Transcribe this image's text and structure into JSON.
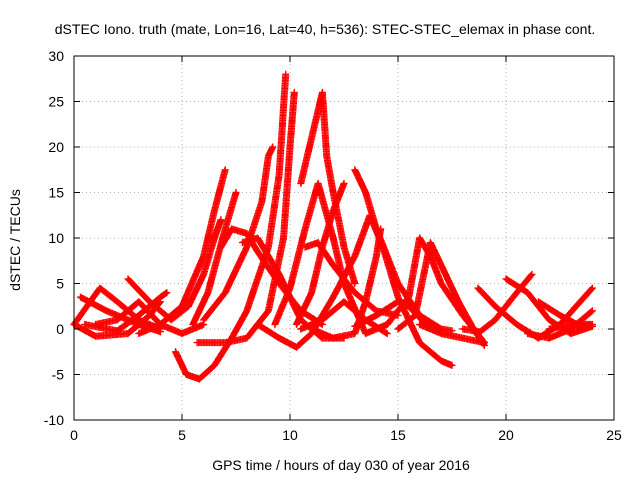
{
  "chart_data": {
    "type": "scatter",
    "title": "dSTEC Iono. truth (mate, Lon=16, Lat=40, h=536): STEC-STEC_elemax in phase cont.",
    "xlabel": "GPS time / hours of day 030 of year 2016",
    "ylabel": "dSTEC  / TECUs",
    "xlim": [
      0,
      25
    ],
    "ylim": [
      -10,
      30
    ],
    "x_ticks": [
      0,
      5,
      10,
      15,
      20,
      25
    ],
    "y_ticks": [
      -10,
      -5,
      0,
      5,
      10,
      15,
      20,
      25,
      30
    ],
    "grid": true,
    "marker": "+",
    "color": "#ff0000",
    "series": [
      {
        "points": [
          [
            0,
            0.5
          ],
          [
            0.6,
            2.5
          ],
          [
            1.2,
            4.5
          ],
          [
            2.0,
            3.0
          ],
          [
            3.0,
            1.0
          ],
          [
            4.0,
            0.0
          ]
        ]
      },
      {
        "points": [
          [
            0,
            0.5
          ],
          [
            1.0,
            -0.8
          ],
          [
            2.5,
            -0.5
          ],
          [
            3.5,
            1.5
          ],
          [
            4.0,
            3.0
          ]
        ]
      },
      {
        "points": [
          [
            0.3,
            3.5
          ],
          [
            1.5,
            2.0
          ],
          [
            3.0,
            0.5
          ],
          [
            4.0,
            -0.3
          ]
        ]
      },
      {
        "points": [
          [
            0.5,
            0.5
          ],
          [
            2.0,
            -0.2
          ],
          [
            3.0,
            1.5
          ],
          [
            4.0,
            3.5
          ],
          [
            4.3,
            4.0
          ]
        ]
      },
      {
        "points": [
          [
            1.0,
            0.5
          ],
          [
            2.0,
            1.0
          ],
          [
            3.0,
            3.0
          ],
          [
            4.0,
            0.5
          ],
          [
            5.0,
            -0.5
          ],
          [
            6.0,
            0.5
          ]
        ]
      },
      {
        "points": [
          [
            2.5,
            5.5
          ],
          [
            3.5,
            3.0
          ],
          [
            4.5,
            1.0
          ],
          [
            5.3,
            2.5
          ],
          [
            6.0,
            6.0
          ],
          [
            6.5,
            10.0
          ],
          [
            6.8,
            12.0
          ]
        ]
      },
      {
        "points": [
          [
            3.0,
            -0.5
          ],
          [
            4.0,
            0.5
          ],
          [
            5.0,
            2.5
          ],
          [
            6.0,
            8.0
          ],
          [
            6.5,
            13.0
          ],
          [
            7.0,
            17.5
          ]
        ]
      },
      {
        "points": [
          [
            4.7,
            -2.5
          ],
          [
            5.2,
            -5.0
          ],
          [
            5.8,
            -5.5
          ],
          [
            6.5,
            -4.0
          ],
          [
            7.3,
            -1.0
          ],
          [
            8.0,
            2.0
          ],
          [
            9.0,
            9.0
          ],
          [
            9.5,
            17.0
          ],
          [
            9.8,
            28.0
          ]
        ]
      },
      {
        "points": [
          [
            5.5,
            0.5
          ],
          [
            6.2,
            4.0
          ],
          [
            7.0,
            11.0
          ],
          [
            7.5,
            15.0
          ]
        ]
      },
      {
        "points": [
          [
            5.7,
            -1.5
          ],
          [
            7.0,
            -1.5
          ],
          [
            8.0,
            -1.0
          ],
          [
            9.0,
            2.0
          ],
          [
            9.7,
            10.0
          ],
          [
            10.0,
            20.0
          ],
          [
            10.2,
            26.0
          ]
        ]
      },
      {
        "points": [
          [
            6.0,
            1.0
          ],
          [
            7.0,
            4.0
          ],
          [
            8.0,
            9.0
          ],
          [
            8.7,
            14.0
          ],
          [
            9.0,
            19.0
          ],
          [
            9.2,
            20.0
          ]
        ]
      },
      {
        "points": [
          [
            6.8,
            9.0
          ],
          [
            7.3,
            11.0
          ],
          [
            8.0,
            10.5
          ],
          [
            8.5,
            8.5
          ],
          [
            9.5,
            5.0
          ],
          [
            10.5,
            2.0
          ],
          [
            11.5,
            0.5
          ]
        ]
      },
      {
        "points": [
          [
            7.8,
            9.5
          ],
          [
            8.5,
            10.0
          ],
          [
            9.5,
            6.0
          ],
          [
            10.5,
            1.0
          ],
          [
            11.5,
            -1.0
          ],
          [
            12.5,
            -1.0
          ]
        ]
      },
      {
        "points": [
          [
            8.5,
            0.5
          ],
          [
            9.5,
            -1.0
          ],
          [
            10.3,
            -2.0
          ],
          [
            11.0,
            -0.5
          ],
          [
            12.0,
            3.5
          ],
          [
            13.0,
            8.0
          ],
          [
            13.7,
            12.5
          ],
          [
            14.3,
            9.0
          ],
          [
            15.0,
            3.5
          ],
          [
            16.0,
            -1.5
          ],
          [
            17.0,
            -3.5
          ],
          [
            17.5,
            -4.0
          ]
        ]
      },
      {
        "points": [
          [
            9.3,
            0.5
          ],
          [
            10.0,
            4.5
          ],
          [
            10.7,
            11.0
          ],
          [
            11.3,
            16.0
          ],
          [
            12.0,
            10.0
          ],
          [
            12.5,
            5.0
          ],
          [
            13.5,
            -0.5
          ],
          [
            14.5,
            0.5
          ]
        ]
      },
      {
        "points": [
          [
            10.5,
            16.0
          ],
          [
            11.0,
            21.0
          ],
          [
            11.5,
            26.0
          ],
          [
            11.7,
            19.0
          ],
          [
            12.0,
            15.0
          ],
          [
            12.5,
            9.0
          ],
          [
            13.0,
            5.0
          ]
        ]
      },
      {
        "points": [
          [
            10.3,
            0.5
          ],
          [
            11.0,
            4.0
          ],
          [
            11.5,
            9.0
          ],
          [
            12.0,
            13.0
          ],
          [
            12.5,
            16.0
          ]
        ]
      },
      {
        "points": [
          [
            10.5,
            0.0
          ],
          [
            11.5,
            1.0
          ],
          [
            12.5,
            3.0
          ],
          [
            13.5,
            1.0
          ],
          [
            14.5,
            -0.5
          ]
        ]
      },
      {
        "points": [
          [
            10.7,
            9.0
          ],
          [
            11.3,
            9.5
          ],
          [
            12.0,
            7.0
          ],
          [
            13.0,
            4.0
          ],
          [
            14.0,
            2.0
          ],
          [
            15.0,
            1.5
          ]
        ]
      },
      {
        "points": [
          [
            11.0,
            0.0
          ],
          [
            12.0,
            -1.0
          ],
          [
            13.0,
            -0.5
          ],
          [
            13.5,
            3.0
          ],
          [
            14.0,
            8.0
          ],
          [
            14.2,
            11.0
          ]
        ]
      },
      {
        "points": [
          [
            13.0,
            17.5
          ],
          [
            13.5,
            15.0
          ],
          [
            14.0,
            11.0
          ],
          [
            15.0,
            5.0
          ],
          [
            16.0,
            1.5
          ],
          [
            17.0,
            0.0
          ],
          [
            17.5,
            -0.2
          ]
        ]
      },
      {
        "points": [
          [
            13.0,
            0.3
          ],
          [
            14.0,
            1.5
          ],
          [
            15.0,
            3.0
          ],
          [
            15.5,
            2.5
          ],
          [
            16.3,
            0.5
          ],
          [
            17.0,
            -0.2
          ]
        ]
      },
      {
        "points": [
          [
            14.5,
            0.5
          ],
          [
            15.5,
            3.5
          ],
          [
            16.0,
            10.0
          ],
          [
            16.5,
            8.0
          ],
          [
            17.0,
            5.0
          ],
          [
            18.0,
            1.5
          ],
          [
            19.0,
            -1.5
          ]
        ]
      },
      {
        "points": [
          [
            15.0,
            0.0
          ],
          [
            15.8,
            1.5
          ],
          [
            16.5,
            9.5
          ],
          [
            17.0,
            7.0
          ],
          [
            17.8,
            3.0
          ],
          [
            18.5,
            0.0
          ],
          [
            19.0,
            -1.8
          ]
        ]
      },
      {
        "points": [
          [
            16.0,
            0.5
          ],
          [
            17.0,
            -0.5
          ],
          [
            18.0,
            -1.0
          ],
          [
            19.0,
            -1.5
          ]
        ]
      },
      {
        "points": [
          [
            18.0,
            0.0
          ],
          [
            18.8,
            -0.3
          ],
          [
            19.5,
            1.0
          ],
          [
            20.5,
            4.0
          ],
          [
            21.2,
            6.0
          ]
        ]
      },
      {
        "points": [
          [
            18.7,
            4.5
          ],
          [
            19.5,
            2.5
          ],
          [
            20.5,
            0.5
          ],
          [
            21.5,
            -1.0
          ],
          [
            22.5,
            0.5
          ],
          [
            24.0,
            4.5
          ]
        ]
      },
      {
        "points": [
          [
            20.0,
            5.5
          ],
          [
            21.0,
            4.0
          ],
          [
            22.0,
            1.0
          ],
          [
            23.0,
            -0.5
          ],
          [
            24.0,
            0.3
          ]
        ]
      },
      {
        "points": [
          [
            21.0,
            -0.5
          ],
          [
            22.0,
            -1.0
          ],
          [
            23.0,
            0.0
          ],
          [
            24.0,
            2.0
          ]
        ]
      },
      {
        "points": [
          [
            21.5,
            3.0
          ],
          [
            22.5,
            1.5
          ],
          [
            23.3,
            0.5
          ],
          [
            24.0,
            0.5
          ]
        ]
      },
      {
        "points": [
          [
            22.0,
            0.0
          ],
          [
            23.0,
            0.5
          ],
          [
            24.0,
            0.3
          ]
        ]
      }
    ]
  }
}
